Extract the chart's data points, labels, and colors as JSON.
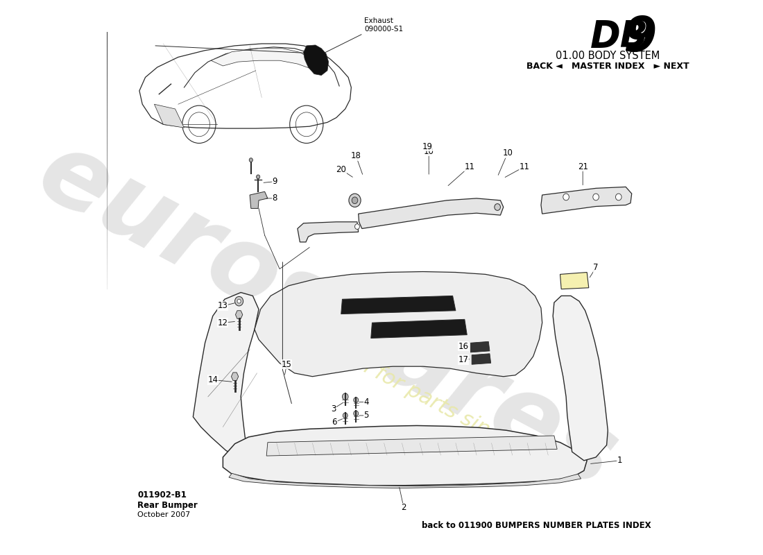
{
  "title_db": "DB",
  "title_9": "9",
  "subtitle": "01.00 BODY SYSTEM",
  "nav": "BACK ◄   MASTER INDEX   ► NEXT",
  "part_id": "011902-B1",
  "part_name": "Rear Bumper",
  "date": "October 2007",
  "footer": "back to 011900 BUMPERS NUMBER PLATES INDEX",
  "exhaust_label": "Exhaust\n090000-S1",
  "bg_color": "#ffffff",
  "lc": "#2a2a2a",
  "wm_color": "#d0d0d0",
  "wm_yellow": "#e8e8a8"
}
